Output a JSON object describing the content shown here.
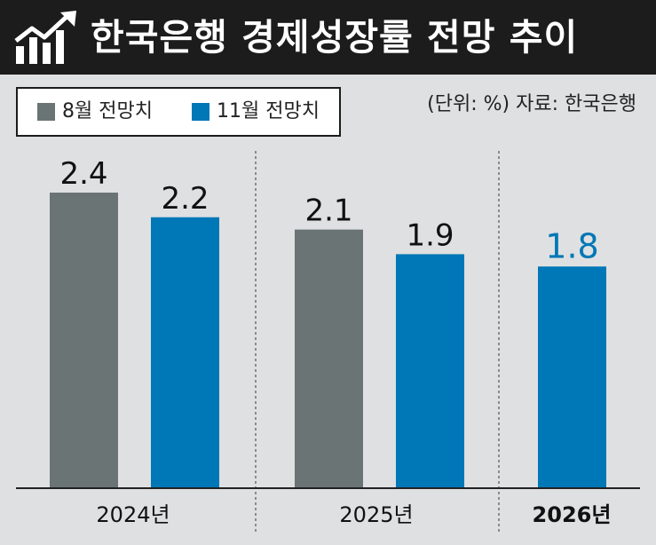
{
  "header": {
    "title": "한국은행 경제성장률 전망 추이",
    "icon": "growth-chart-icon"
  },
  "note": {
    "unit": "(단위: %)",
    "source": "자료: 한국은행"
  },
  "colors": {
    "august": "#6b7475",
    "november": "#0077b6",
    "header_bg": "#1c1c1c",
    "background": "#dfe0e1"
  },
  "chart_data": {
    "type": "bar",
    "categories": [
      "2024년",
      "2025년",
      "2026년"
    ],
    "series": [
      {
        "name": "8월 전망치",
        "values": [
          2.4,
          2.1,
          null
        ]
      },
      {
        "name": "11월 전망치",
        "values": [
          2.2,
          1.9,
          1.8
        ]
      }
    ],
    "data_labels": {
      "august": [
        "2.4",
        "2.1",
        ""
      ],
      "november": [
        "2.2",
        "1.9",
        "1.8"
      ]
    },
    "legend": [
      "8월 전망치",
      "11월 전망치"
    ],
    "legend_position": "top-left",
    "title": "한국은행 경제성장률 전망 추이",
    "ylim": [
      0,
      2.4
    ],
    "grid": false
  }
}
